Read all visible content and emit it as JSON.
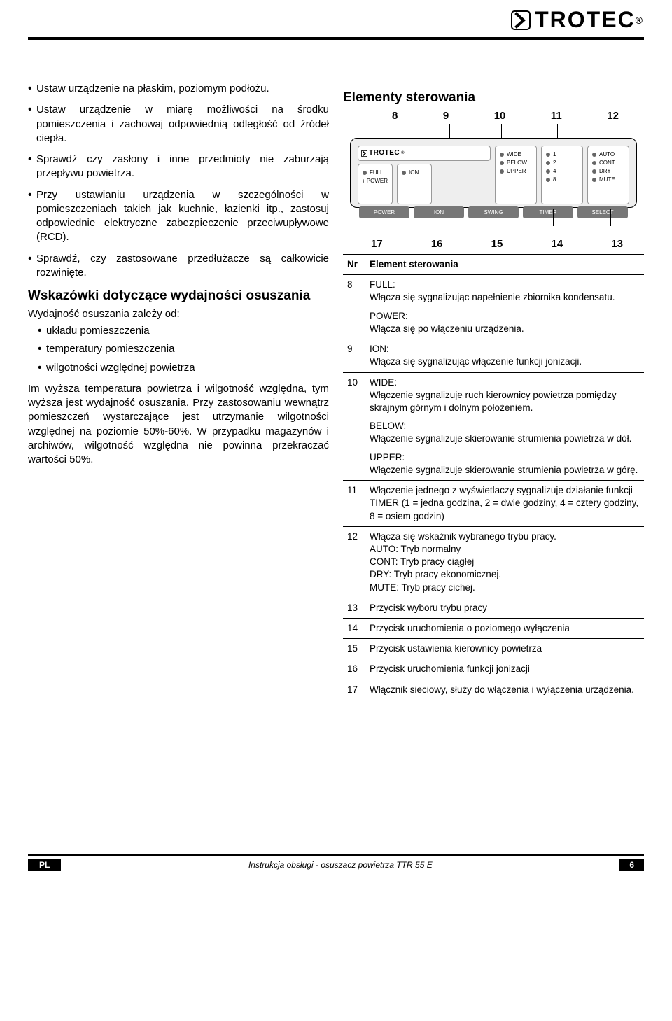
{
  "brand": "TROTEC",
  "reg": "®",
  "left": {
    "bullets": [
      "Ustaw urządzenie na płaskim, poziomym podłożu.",
      "Ustaw urządzenie w miarę możliwości na środku pomieszczenia i zachowaj odpowiednią odległość od źródeł ciepła.",
      "Sprawdź czy zasłony i inne przedmioty nie zaburzają przepływu powietrza.",
      "Przy ustawianiu urządzenia w szczególności w pomieszczeniach takich jak kuchnie, łazienki itp., zastosuj odpowiednie elektryczne zabezpieczenie przeciwupływowe (RCD).",
      "Sprawdź, czy zastosowane przedłużacze są całkowicie rozwinięte."
    ],
    "h2": "Wskazówki dotyczące wydajności osuszania",
    "intro": "Wydajność osuszania zależy od:",
    "subs": [
      "układu pomieszczenia",
      "temperatury pomieszczenia",
      "wilgotności względnej powietrza"
    ],
    "para": "Im wyższa temperatura powietrza i wilgotność względna, tym wyższa jest wydajność osuszania. Przy zastosowaniu wewnątrz pomieszczeń wystarczające jest utrzymanie wilgotności względnej na poziomie 50%-60%. W przypadku magazynów i archiwów, wilgotność względna nie powinna przekraczać wartości 50%."
  },
  "right": {
    "h2": "Elementy sterowania",
    "top_nums": [
      "8",
      "9",
      "10",
      "11",
      "12"
    ],
    "panel": {
      "d1": [
        "FULL",
        "POWER"
      ],
      "d2": [
        "ION"
      ],
      "d3": [
        "WIDE",
        "BELOW",
        "UPPER"
      ],
      "d4": [
        "1",
        "2",
        "4",
        "8"
      ],
      "d5": [
        "AUTO",
        "CONT",
        "DRY",
        "MUTE"
      ],
      "buttons": [
        "POWER",
        "ION",
        "SWING",
        "TIMER",
        "SELECT"
      ]
    },
    "bot_nums": [
      "17",
      "16",
      "15",
      "14",
      "13"
    ],
    "table_head": [
      "Nr",
      "Element sterowania"
    ],
    "rows": [
      {
        "n": "8",
        "blocks": [
          {
            "name": "FULL:",
            "txt": "Włącza się sygnalizując napełnienie zbiornika kondensatu."
          },
          {
            "name": "POWER:",
            "txt": "Włącza się po włączeniu urządzenia."
          }
        ]
      },
      {
        "n": "9",
        "blocks": [
          {
            "name": "ION:",
            "txt": "Włącza się sygnalizując włączenie funkcji jonizacji."
          }
        ]
      },
      {
        "n": "10",
        "blocks": [
          {
            "name": "WIDE:",
            "txt": "Włączenie sygnalizuje ruch kierownicy powietrza pomiędzy skrajnym górnym i dolnym położeniem."
          },
          {
            "name": "BELOW:",
            "txt": "Włączenie sygnalizuje skierowanie strumienia powietrza w dół."
          },
          {
            "name": "UPPER:",
            "txt": "Włączenie sygnalizuje skierowanie strumienia powietrza w górę."
          }
        ]
      },
      {
        "n": "11",
        "blocks": [
          {
            "name": "",
            "txt": "Włączenie jednego z wyświetlaczy sygnalizuje działanie funkcji TIMER (1 = jedna godzina, 2 = dwie godziny, 4 = cztery godziny, 8 = osiem godzin)"
          }
        ]
      },
      {
        "n": "12",
        "blocks": [
          {
            "name": "",
            "txt": "Włącza się wskaźnik wybranego trybu pracy.\nAUTO: Tryb normalny\nCONT: Tryb pracy ciągłej\nDRY: Tryb pracy ekonomicznej.\nMUTE: Tryb pracy cichej."
          }
        ]
      },
      {
        "n": "13",
        "blocks": [
          {
            "name": "",
            "txt": "Przycisk wyboru trybu pracy"
          }
        ]
      },
      {
        "n": "14",
        "blocks": [
          {
            "name": "",
            "txt": "Przycisk uruchomienia o poziomego wyłączenia"
          }
        ]
      },
      {
        "n": "15",
        "blocks": [
          {
            "name": "",
            "txt": "Przycisk ustawienia kierownicy powietrza"
          }
        ]
      },
      {
        "n": "16",
        "blocks": [
          {
            "name": "",
            "txt": "Przycisk uruchomienia funkcji jonizacji"
          }
        ]
      },
      {
        "n": "17",
        "blocks": [
          {
            "name": "",
            "txt": "Włącznik sieciowy, służy do włączenia i wyłączenia urządzenia."
          }
        ]
      }
    ]
  },
  "footer": {
    "lang": "PL",
    "center": "Instrukcja obsługi - osuszacz powietrza TTR 55 E",
    "page": "6"
  }
}
